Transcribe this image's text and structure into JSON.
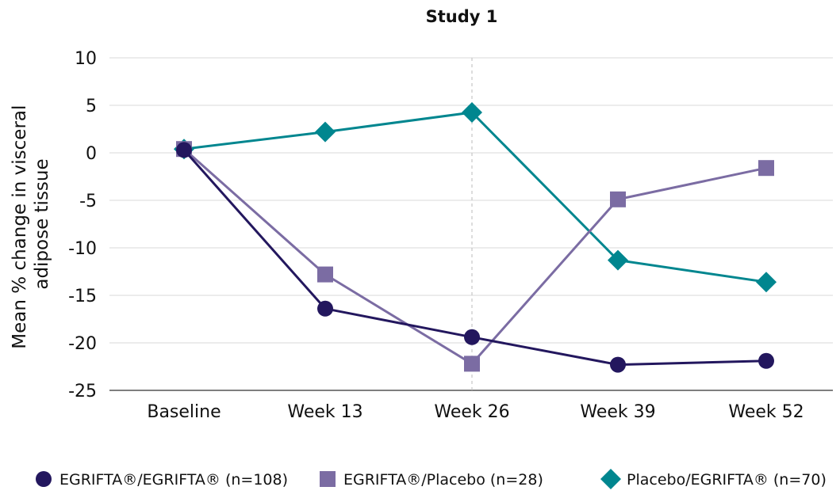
{
  "chart_data": {
    "type": "line",
    "title": "Study 1",
    "xlabel": "",
    "ylabel": "Mean % change in visceral adipose tissue",
    "ylabel_lines": [
      "Mean % change in visceral",
      "adipose tissue"
    ],
    "categories": [
      "Baseline",
      "Week 13",
      "Week 26",
      "Week 39",
      "Week 52"
    ],
    "ylim": [
      -25,
      10
    ],
    "yticks": [
      10,
      5,
      0,
      -5,
      -10,
      -15,
      -20,
      -25
    ],
    "grid": "horizontal",
    "reference_line": "Week 26",
    "legend_position": "bottom",
    "series": [
      {
        "name": "EGRIFTA®/EGRIFTA® (n=108)",
        "marker": "circle",
        "color": "#23175e",
        "values": [
          0.3,
          -16.4,
          -19.4,
          -22.3,
          -21.9
        ]
      },
      {
        "name": "EGRIFTA®/Placebo (n=28)",
        "marker": "square",
        "color": "#7b6ca3",
        "values": [
          0.4,
          -12.8,
          -22.2,
          -4.9,
          -1.6
        ]
      },
      {
        "name": "Placebo/EGRIFTA® (n=70)",
        "marker": "diamond",
        "color": "#00868f",
        "values": [
          0.4,
          2.2,
          4.25,
          -11.3,
          -13.6
        ]
      }
    ]
  }
}
